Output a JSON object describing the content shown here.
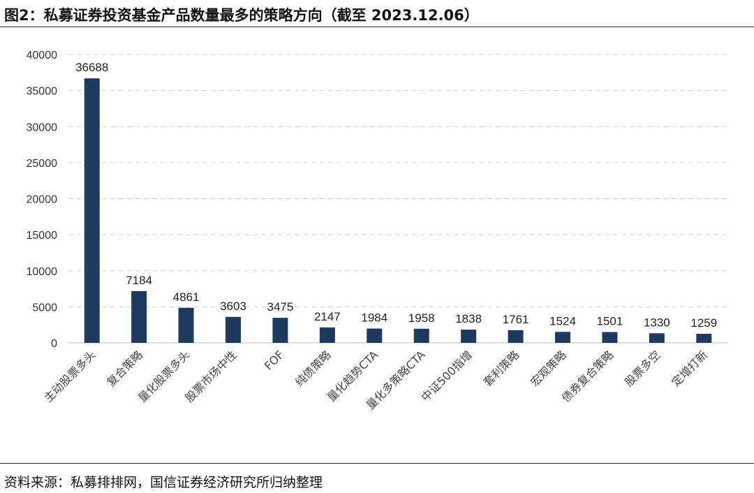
{
  "header": {
    "title": "图2：私募证券投资基金产品数量最多的策略方向（截至 2023.12.06）"
  },
  "footer": {
    "source": "资料来源：私募排排网，国信证券经济研究所归纳整理"
  },
  "chart_data": {
    "type": "bar",
    "categories": [
      "主动股票多头",
      "复合策略",
      "量化股票多头",
      "股票市场中性",
      "FOF",
      "纯债策略",
      "量化趋势CTA",
      "量化多策略CTA",
      "中证500指增",
      "套利策略",
      "宏观策略",
      "债券复合策略",
      "股票多空",
      "定增打新"
    ],
    "values": [
      36688,
      7184,
      4861,
      3603,
      3475,
      2147,
      1984,
      1958,
      1838,
      1761,
      1524,
      1501,
      1330,
      1259
    ],
    "yticks": [
      0,
      5000,
      10000,
      15000,
      20000,
      25000,
      30000,
      35000,
      40000
    ],
    "ylim": [
      0,
      40000
    ],
    "grid": true,
    "legend": "none",
    "bar_color": "#1f3a5f",
    "grid_color": "#d0d0d0"
  }
}
